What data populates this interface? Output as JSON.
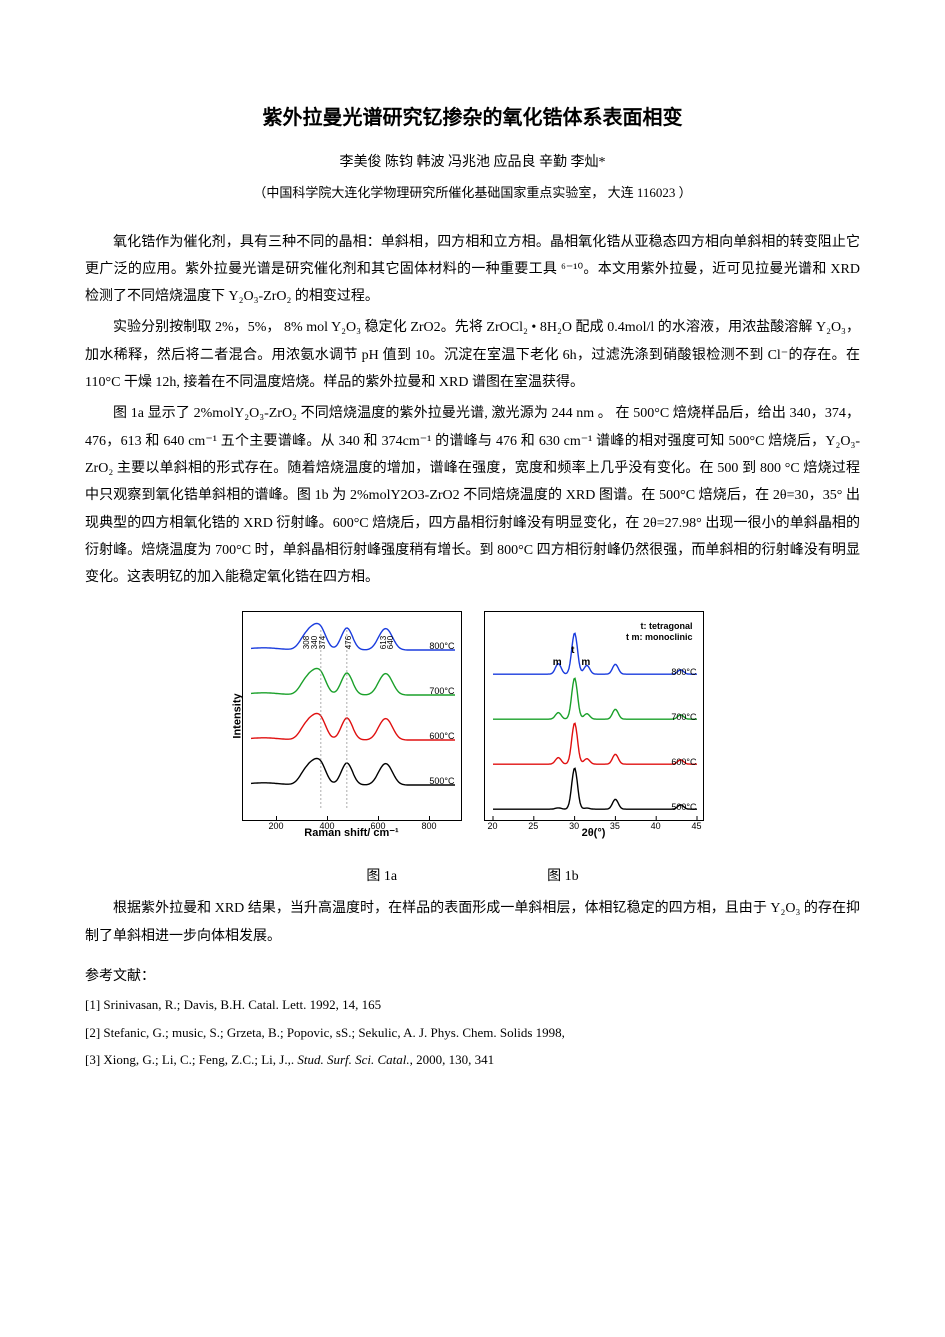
{
  "title": "紫外拉曼光谱研究钇掺杂的氧化锆体系表面相变",
  "authors": "李美俊  陈钧  韩波  冯兆池  应品良  辛勤  李灿*",
  "affiliation": "（中国科学院大连化学物理研究所催化基础国家重点实验室，  大连   116023 ）",
  "para1": "氧化锆作为催化剂，具有三种不同的晶相：单斜相，四方相和立方相。晶相氧化锆从亚稳态四方相向单斜相的转变阻止它更广泛的应用。紫外拉曼光谱是研究催化剂和其它固体材料的一种重要工具 ⁶⁻¹⁰。本文用紫外拉曼，近可见拉曼光谱和 XRD 检测了不同焙烧温度下 Y₂O₃-ZrO₂ 的相变过程。",
  "para2": "实验分别按制取 2%，5%， 8% mol Y₂O₃ 稳定化 ZrO2。先将 ZrOCl₂ • 8H₂O 配成 0.4mol/l 的水溶液，用浓盐酸溶解 Y₂O₃，加水稀释，然后将二者混合。用浓氨水调节 pH 值到 10。沉淀在室温下老化 6h，过滤洗涤到硝酸银检测不到 Cl⁻的存在。在 110°C 干燥 12h,  接着在不同温度焙烧。样品的紫外拉曼和 XRD 谱图在室温获得。",
  "para3": "图 1a 显示了 2%molY₂O₃-ZrO₂ 不同焙烧温度的紫外拉曼光谱, 激光源为 244 nm 。 在 500°C 焙烧样品后，给出 340，374，476，613 和 640 cm⁻¹ 五个主要谱峰。从 340 和 374cm⁻¹ 的谱峰与 476 和 630 cm⁻¹ 谱峰的相对强度可知 500°C 焙烧后，Y₂O₃-ZrO₂ 主要以单斜相的形式存在。随着焙烧温度的增加，谱峰在强度，宽度和频率上几乎没有变化。在 500 到 800 °C 焙烧过程中只观察到氧化锆单斜相的谱峰。图 1b 为 2%molY2O3-ZrO2 不同焙烧温度的 XRD 图谱。在 500°C 焙烧后，在 2θ=30，35° 出现典型的四方相氧化锆的 XRD 衍射峰。600°C 焙烧后，四方晶相衍射峰没有明显变化，在 2θ=27.98° 出现一很小的单斜晶相的衍射峰。焙烧温度为 700°C 时，单斜晶相衍射峰强度稍有增长。到 800°C 四方相衍射峰仍然很强，而单斜相的衍射峰没有明显变化。这表明钇的加入能稳定氧化锆在四方相。",
  "fig1a_caption": "图 1a",
  "fig1b_caption": "图 1b",
  "para4": "根据紫外拉曼和 XRD 结果，当升高温度时，在样品的表面形成一单斜相层，体相钇稳定的四方相，且由于 Y₂O₃ 的存在抑制了单斜相进一步向体相发展。",
  "refs_title": "参考文献：",
  "ref1": "[1]    Srinivasan, R.; Davis, B.H. Catal. Lett. 1992, 14, 165",
  "ref2": "[2]    Stefanic, G.; music, S.; Grzeta, B.; Popovic, sS.; Sekulic, A. J. Phys. Chem. Solids 1998,",
  "ref3_prefix": "[3]    Xiong, G.; Li, C.; Feng, Z.C.; Li, J.,. ",
  "ref3_journal": "Stud. Surf. Sci. Catal.,",
  "ref3_suffix": " 2000, 130, 341",
  "chart_a": {
    "type": "line-spectra",
    "ylabel": "Intensity",
    "xlabel": "Raman shift/ cm⁻¹",
    "x_ticks": [
      200,
      400,
      600,
      800
    ],
    "x_range": [
      100,
      900
    ],
    "peak_labels": [
      "308",
      "340",
      "374",
      "476",
      "613",
      "640"
    ],
    "peak_positions_cm": [
      308,
      340,
      374,
      476,
      613,
      640
    ],
    "series": [
      {
        "label": "800°C",
        "color": "#1a3cde",
        "offset": 0
      },
      {
        "label": "700°C",
        "color": "#1aa02a",
        "offset": 45
      },
      {
        "label": "600°C",
        "color": "#e01010",
        "offset": 90
      },
      {
        "label": "500°C",
        "color": "#000000",
        "offset": 135
      }
    ],
    "peak_heights": {
      "308": 18,
      "340": 28,
      "374": 35,
      "476": 40,
      "613": 22,
      "640": 25
    },
    "colors": {
      "bg": "#ffffff",
      "axis": "#000000"
    }
  },
  "chart_b": {
    "type": "xrd",
    "xlabel": "2θ(°)",
    "x_ticks": [
      20,
      25,
      30,
      35,
      40,
      45
    ],
    "x_range": [
      20,
      45
    ],
    "legend_lines": [
      "t: tetragonal",
      "t m: monoclinic"
    ],
    "t_marker_x": 30,
    "m_markers_x": [
      28,
      31.5
    ],
    "series": [
      {
        "label": "800°C",
        "color": "#1a3cde",
        "offset": 0
      },
      {
        "label": "700°C",
        "color": "#1aa02a",
        "offset": 50
      },
      {
        "label": "600°C",
        "color": "#e01010",
        "offset": 100
      },
      {
        "label": "500°C",
        "color": "#000000",
        "offset": 150
      }
    ],
    "peaks": [
      {
        "x": 28.0,
        "h": 12
      },
      {
        "x": 30.0,
        "h": 75
      },
      {
        "x": 31.5,
        "h": 10
      },
      {
        "x": 35.0,
        "h": 18
      },
      {
        "x": 43.0,
        "h": 8
      }
    ],
    "colors": {
      "bg": "#ffffff",
      "axis": "#000000"
    }
  }
}
